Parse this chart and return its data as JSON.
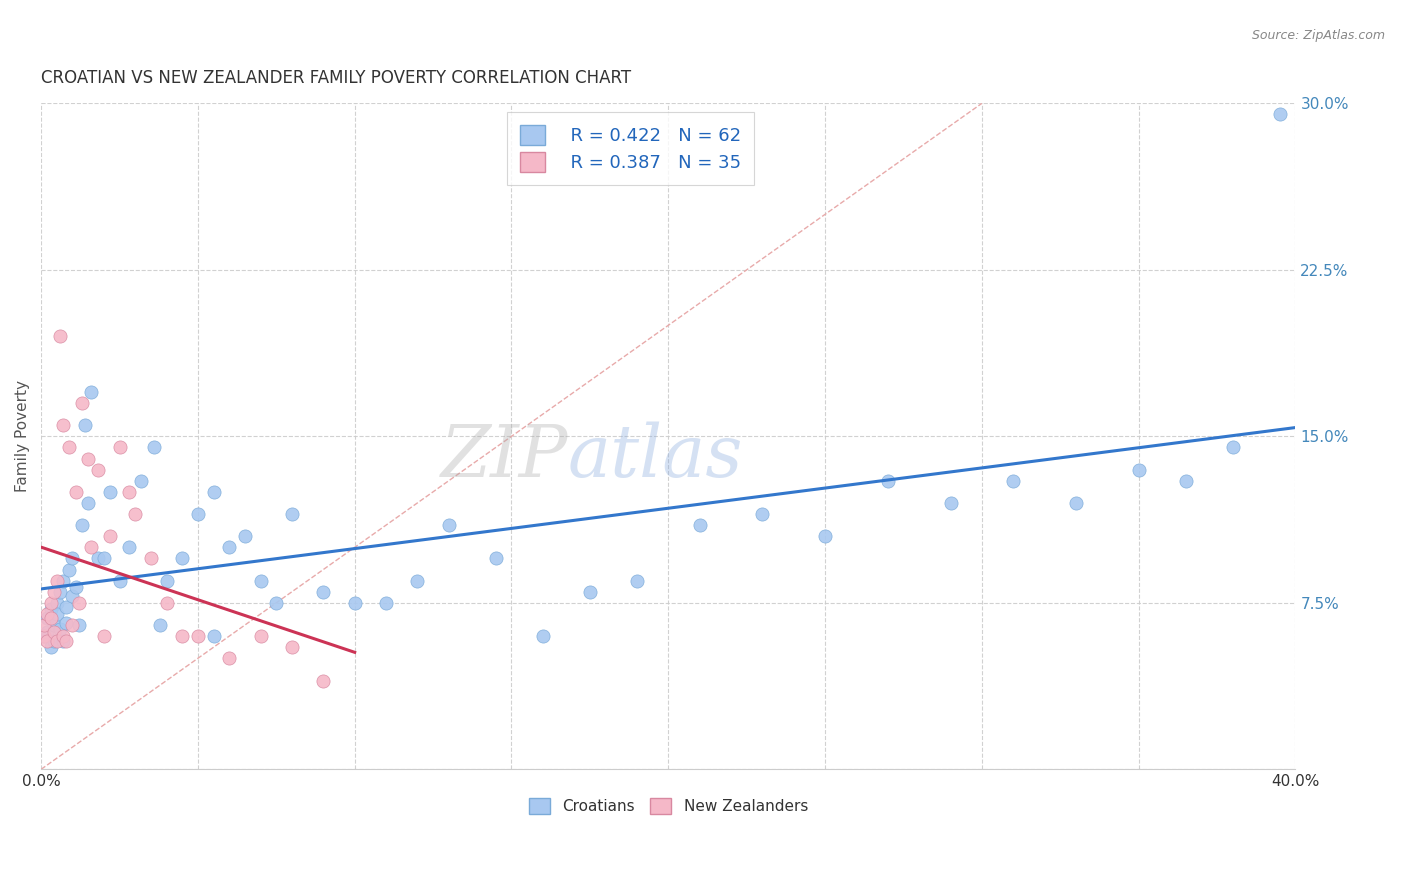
{
  "title": "CROATIAN VS NEW ZEALANDER FAMILY POVERTY CORRELATION CHART",
  "source": "Source: ZipAtlas.com",
  "ylabel": "Family Poverty",
  "xlim": [
    0.0,
    0.4
  ],
  "ylim": [
    0.0,
    0.3
  ],
  "croatian_color": "#A8C8F0",
  "croatian_edge": "#7AAAD8",
  "nz_color": "#F5B8C8",
  "nz_edge": "#D888A0",
  "trend_line_croatian_color": "#3377CC",
  "trend_line_nz_color": "#CC3355",
  "diagonal_color": "#E8AAAA",
  "legend_R_croatian": "R = 0.422",
  "legend_N_croatian": "N = 62",
  "legend_R_nz": "R = 0.387",
  "legend_N_nz": "N = 35",
  "watermark_zip": "ZIP",
  "watermark_atlas": "atlas",
  "croatians_x": [
    0.001,
    0.002,
    0.002,
    0.003,
    0.003,
    0.004,
    0.004,
    0.005,
    0.005,
    0.006,
    0.006,
    0.007,
    0.007,
    0.008,
    0.008,
    0.009,
    0.01,
    0.01,
    0.011,
    0.012,
    0.013,
    0.014,
    0.015,
    0.016,
    0.018,
    0.02,
    0.022,
    0.025,
    0.028,
    0.032,
    0.036,
    0.04,
    0.045,
    0.05,
    0.055,
    0.06,
    0.065,
    0.07,
    0.075,
    0.08,
    0.09,
    0.1,
    0.11,
    0.12,
    0.13,
    0.145,
    0.16,
    0.175,
    0.19,
    0.21,
    0.23,
    0.25,
    0.27,
    0.29,
    0.31,
    0.33,
    0.35,
    0.365,
    0.38,
    0.395,
    0.038,
    0.055
  ],
  "croatians_y": [
    0.06,
    0.068,
    0.062,
    0.055,
    0.072,
    0.058,
    0.065,
    0.075,
    0.07,
    0.063,
    0.08,
    0.058,
    0.085,
    0.073,
    0.066,
    0.09,
    0.078,
    0.095,
    0.082,
    0.065,
    0.11,
    0.155,
    0.12,
    0.17,
    0.095,
    0.095,
    0.125,
    0.085,
    0.1,
    0.13,
    0.145,
    0.085,
    0.095,
    0.115,
    0.125,
    0.1,
    0.105,
    0.085,
    0.075,
    0.115,
    0.08,
    0.075,
    0.075,
    0.085,
    0.11,
    0.095,
    0.06,
    0.08,
    0.085,
    0.11,
    0.115,
    0.105,
    0.13,
    0.12,
    0.13,
    0.12,
    0.135,
    0.13,
    0.145,
    0.295,
    0.065,
    0.06
  ],
  "nz_x": [
    0.001,
    0.001,
    0.002,
    0.002,
    0.003,
    0.003,
    0.004,
    0.004,
    0.005,
    0.005,
    0.006,
    0.007,
    0.007,
    0.008,
    0.009,
    0.01,
    0.011,
    0.012,
    0.013,
    0.015,
    0.016,
    0.018,
    0.02,
    0.022,
    0.025,
    0.028,
    0.03,
    0.035,
    0.04,
    0.045,
    0.05,
    0.06,
    0.07,
    0.08,
    0.09
  ],
  "nz_y": [
    0.06,
    0.065,
    0.07,
    0.058,
    0.075,
    0.068,
    0.062,
    0.08,
    0.058,
    0.085,
    0.195,
    0.06,
    0.155,
    0.058,
    0.145,
    0.065,
    0.125,
    0.075,
    0.165,
    0.14,
    0.1,
    0.135,
    0.06,
    0.105,
    0.145,
    0.125,
    0.115,
    0.095,
    0.075,
    0.06,
    0.06,
    0.05,
    0.06,
    0.055,
    0.04
  ]
}
